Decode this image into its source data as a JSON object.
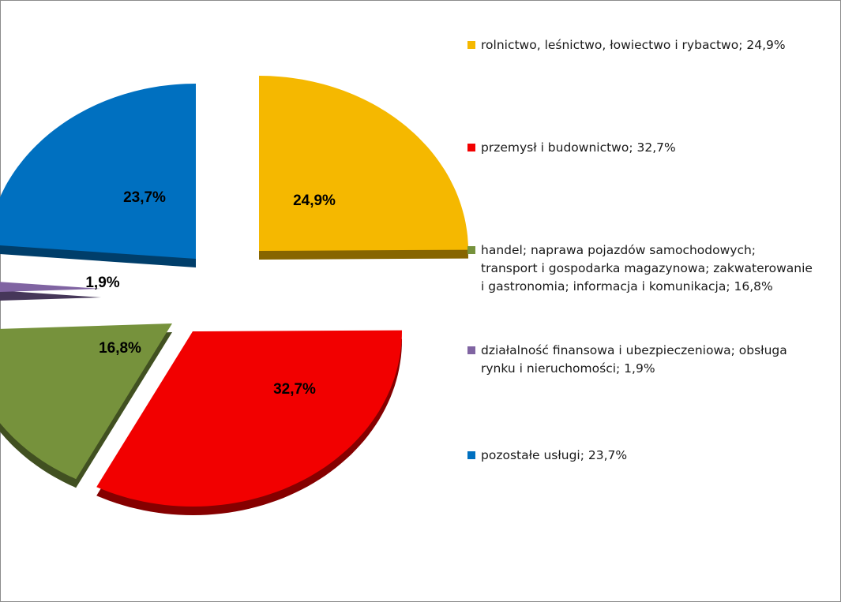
{
  "chart_data": {
    "type": "pie",
    "style": "exploded 3d pie with data labels",
    "legend_position": "right",
    "slices": [
      {
        "label": "rolnictwo, leśnictwo, łowiectwo i rybactwo",
        "value": 24.9,
        "data_label": "24,9%",
        "legend_text": "rolnictwo, leśnictwo, łowiectwo i rybactwo; 24,9%",
        "color": "#F5B800"
      },
      {
        "label": "przemysł i budownictwo",
        "value": 32.7,
        "data_label": "32,7%",
        "legend_text": "przemysł i budownictwo; 32,7%",
        "color": "#F20000"
      },
      {
        "label": "handel; naprawa pojazdów samochodowych; transport i gospodarka magazynowa; zakwaterowanie i gastronomia; informacja i komunikacja",
        "value": 16.8,
        "data_label": "16,8%",
        "legend_text": "handel; naprawa pojazdów samochodowych; transport i gospodarka magazynowa; zakwaterowanie i gastronomia; informacja i komunikacja; 16,8%",
        "color": "#76923C"
      },
      {
        "label": "działalność finansowa i ubezpieczeniowa; obsługa rynku i nieruchomości",
        "value": 1.9,
        "data_label": "1,9%",
        "legend_text": "działalność finansowa i ubezpieczeniowa; obsługa rynku i nieruchomości; 1,9%",
        "color": "#8064A2"
      },
      {
        "label": "pozostałe usługi",
        "value": 23.7,
        "data_label": "23,7%",
        "legend_text": "pozostałe usługi; 23,7%",
        "color": "#0070C0"
      }
    ]
  }
}
